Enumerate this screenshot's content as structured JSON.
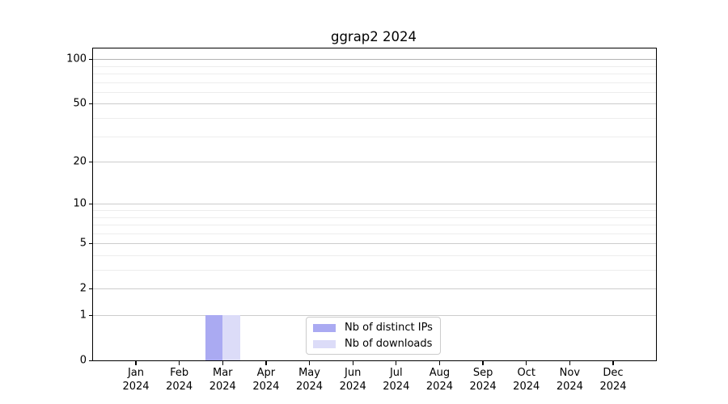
{
  "chart_data": {
    "type": "bar",
    "title": "ggrap2 2024",
    "categories": [
      "Jan 2024",
      "Feb 2024",
      "Mar 2024",
      "Apr 2024",
      "May 2024",
      "Jun 2024",
      "Jul 2024",
      "Aug 2024",
      "Sep 2024",
      "Oct 2024",
      "Nov 2024",
      "Dec 2024"
    ],
    "x_ticks": [
      {
        "line1": "Jan",
        "line2": "2024"
      },
      {
        "line1": "Feb",
        "line2": "2024"
      },
      {
        "line1": "Mar",
        "line2": "2024"
      },
      {
        "line1": "Apr",
        "line2": "2024"
      },
      {
        "line1": "May",
        "line2": "2024"
      },
      {
        "line1": "Jun",
        "line2": "2024"
      },
      {
        "line1": "Jul",
        "line2": "2024"
      },
      {
        "line1": "Aug",
        "line2": "2024"
      },
      {
        "line1": "Sep",
        "line2": "2024"
      },
      {
        "line1": "Oct",
        "line2": "2024"
      },
      {
        "line1": "Nov",
        "line2": "2024"
      },
      {
        "line1": "Dec",
        "line2": "2024"
      }
    ],
    "series": [
      {
        "name": "Nb of distinct IPs",
        "color": "#aaaaf2",
        "values": [
          0,
          0,
          1,
          0,
          0,
          0,
          0,
          0,
          0,
          0,
          0,
          0
        ]
      },
      {
        "name": "Nb of downloads",
        "color": "#dcdcf8",
        "values": [
          0,
          0,
          1,
          0,
          0,
          0,
          0,
          0,
          0,
          0,
          0,
          0
        ]
      }
    ],
    "xlabel": "",
    "ylabel": "",
    "y_scale": "log1p",
    "y_major_ticks": [
      0,
      1,
      2,
      5,
      10,
      20,
      50,
      100
    ],
    "y_minor_gridlines": [
      3,
      4,
      6,
      7,
      8,
      9,
      30,
      40,
      60,
      70,
      80,
      90
    ],
    "ylim": [
      0,
      118
    ],
    "grid": true,
    "legend_position": "lower center"
  }
}
